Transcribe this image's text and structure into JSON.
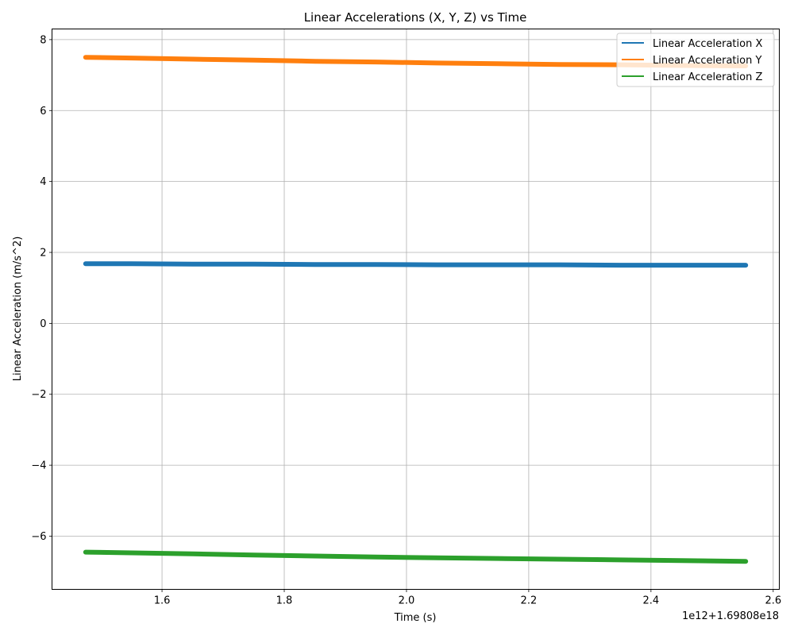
{
  "chart_data": {
    "type": "line",
    "title": "Linear Accelerations (X, Y, Z) vs Time",
    "xlabel": "Time (s)",
    "ylabel": "Linear Acceleration (m/s^2)",
    "x_offset_text": "1e12+1.69808e18",
    "xlim": [
      1.42,
      2.61
    ],
    "ylim": [
      -7.5,
      8.3
    ],
    "x_ticks": [
      1.6,
      1.8,
      2.0,
      2.2,
      2.4,
      2.6
    ],
    "x_tick_labels": [
      "1.6",
      "1.8",
      "2.0",
      "2.2",
      "2.4",
      "2.6"
    ],
    "y_ticks": [
      -6,
      -4,
      -2,
      0,
      2,
      4,
      6,
      8
    ],
    "y_tick_labels": [
      "−6",
      "−4",
      "−2",
      "0",
      "2",
      "4",
      "6",
      "8"
    ],
    "grid": true,
    "legend_position": "top-right",
    "x": [
      1.475,
      1.55,
      1.65,
      1.75,
      1.85,
      1.95,
      2.05,
      2.15,
      2.25,
      2.35,
      2.45,
      2.555
    ],
    "series": [
      {
        "name": "Linear Acceleration X",
        "color": "#1f77b4",
        "values": [
          1.68,
          1.68,
          1.67,
          1.67,
          1.66,
          1.66,
          1.65,
          1.65,
          1.65,
          1.64,
          1.64,
          1.64
        ]
      },
      {
        "name": "Linear Acceleration Y",
        "color": "#ff7f0e",
        "values": [
          7.5,
          7.48,
          7.45,
          7.42,
          7.39,
          7.37,
          7.34,
          7.32,
          7.3,
          7.29,
          7.27,
          7.26
        ]
      },
      {
        "name": "Linear Acceleration Z",
        "color": "#2ca02c",
        "values": [
          -6.45,
          -6.47,
          -6.5,
          -6.53,
          -6.56,
          -6.59,
          -6.61,
          -6.63,
          -6.65,
          -6.67,
          -6.69,
          -6.71
        ]
      }
    ]
  }
}
